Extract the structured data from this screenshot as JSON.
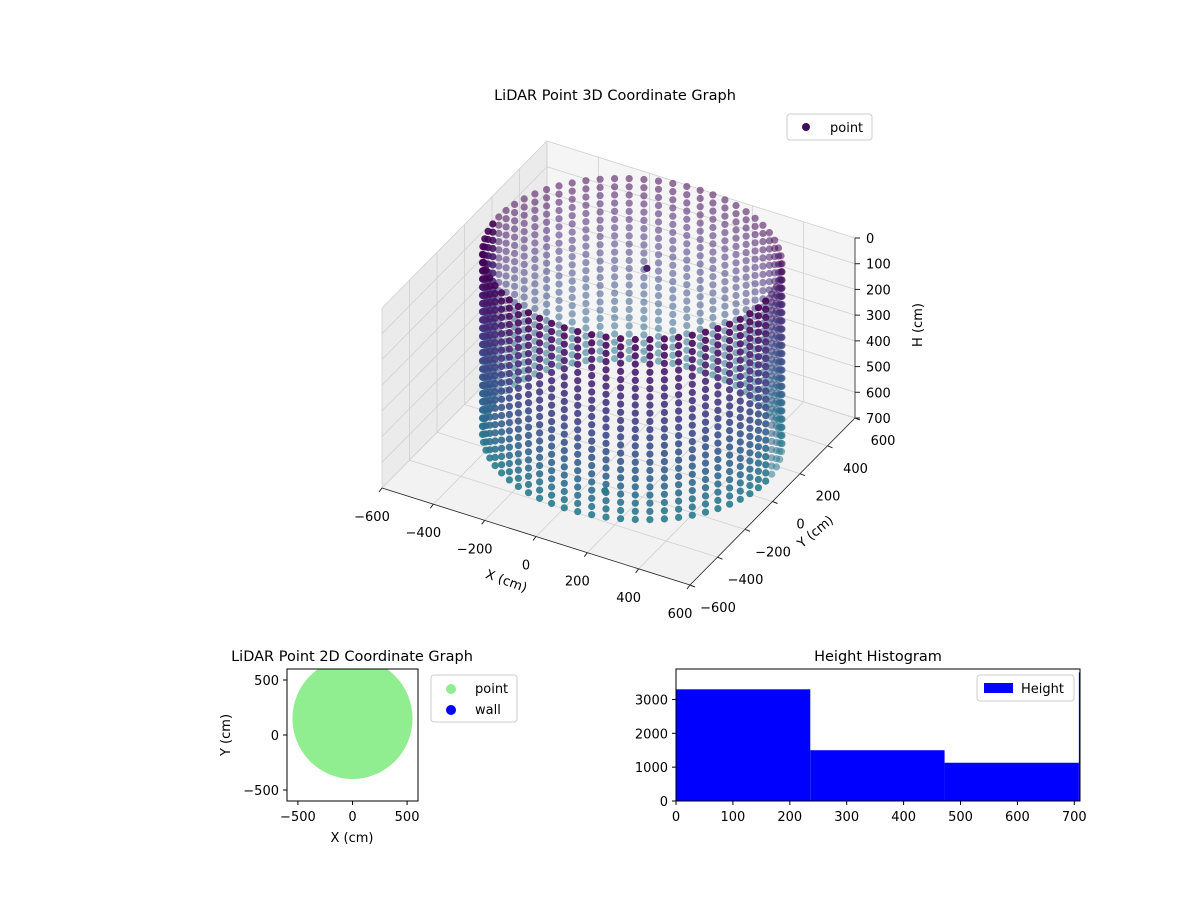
{
  "chart_data": [
    {
      "type": "scatter3d",
      "title": "LiDAR Point 3D Coordinate Graph",
      "xlabel": "X (cm)",
      "ylabel": "Y (cm)",
      "zlabel": "H (cm)",
      "xlim": [
        -600,
        600
      ],
      "ylim": [
        -600,
        600
      ],
      "zlim": [
        0,
        700
      ],
      "z_inverted": true,
      "xticks": [
        "−600",
        "−400",
        "−200",
        "0",
        "200",
        "400",
        "600"
      ],
      "yticks": [
        "−600",
        "−400",
        "−200",
        "0",
        "200",
        "400",
        "600"
      ],
      "zticks": [
        "0",
        "100",
        "200",
        "300",
        "400",
        "500",
        "600",
        "700"
      ],
      "legend": [
        {
          "label": "point",
          "color": "#3e0e59"
        }
      ],
      "legend_position": "upper-right",
      "colormap": "viridis",
      "shape": {
        "kind": "cylinder-wall",
        "center": [
          0,
          100
        ],
        "radius": 520,
        "h_min": 0,
        "h_max": 700
      },
      "outliers": [
        {
          "x": 70,
          "y": -230,
          "h": 700
        },
        {
          "x": -50,
          "y": 300,
          "h": 160
        }
      ]
    },
    {
      "type": "scatter",
      "title": "LiDAR Point 2D Coordinate Graph",
      "xlabel": "X (cm)",
      "ylabel": "Y (cm)",
      "xlim": [
        -600,
        600
      ],
      "ylim": [
        -600,
        600
      ],
      "xticks": [
        "−500",
        "0",
        "500"
      ],
      "yticks": [
        "−500",
        "0",
        "500"
      ],
      "series": [
        {
          "name": "point",
          "color": "#90ee90",
          "region": "filled disk, center (0, 150), radius 550",
          "outliers": [
            {
              "x": 60,
              "y": -240
            }
          ]
        },
        {
          "name": "wall",
          "color": "#0000ff",
          "points": []
        }
      ],
      "legend_position": "outside-right"
    },
    {
      "type": "bar",
      "title": "Height Histogram",
      "legend": [
        {
          "label": "Height",
          "color": "#0000ff"
        }
      ],
      "legend_position": "upper-right",
      "xlim": [
        0,
        710
      ],
      "ylim": [
        0,
        3900
      ],
      "xticks": [
        "0",
        "100",
        "200",
        "300",
        "400",
        "500",
        "600",
        "700"
      ],
      "yticks": [
        "0",
        "1000",
        "2000",
        "3000"
      ],
      "bins": [
        {
          "start": 0,
          "end": 236,
          "count": 3300
        },
        {
          "start": 236,
          "end": 472,
          "count": 1500
        },
        {
          "start": 472,
          "end": 708,
          "count": 1130
        },
        {
          "start": 708,
          "end": 710,
          "count": 3800
        }
      ]
    }
  ]
}
